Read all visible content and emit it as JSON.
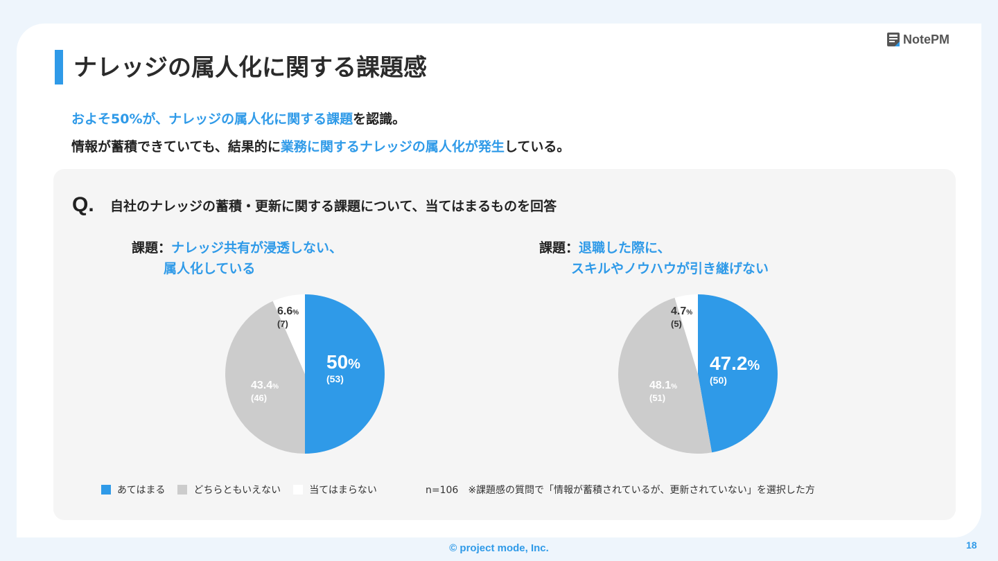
{
  "header": {
    "title": "ナレッジの属人化に関する課題感",
    "logo_text": "NotePM"
  },
  "lead": {
    "line1": [
      {
        "text": "およそ50%が、",
        "hl": true
      },
      {
        "text": "ナレッジの属人化に関する課題",
        "hl": true
      },
      {
        "text": "を認識。",
        "hl": false
      }
    ],
    "line2": [
      {
        "text": "情報が蓄積できていても、結果的に",
        "hl": false
      },
      {
        "text": "業務に関するナレッジの属人化が発生",
        "hl": true
      },
      {
        "text": "している。",
        "hl": false
      }
    ]
  },
  "question": {
    "mark": "Q.",
    "text": "自社のナレッジの蓄積・更新に関する課題について、当てはまるものを回答"
  },
  "chart_data": [
    {
      "type": "pie",
      "title_prefix": "課題：",
      "title_lines": [
        "ナレッジ共有が浸透しない、",
        "属人化している"
      ],
      "categories": [
        "あてはまる",
        "どちらともいえない",
        "当てはまらない"
      ],
      "values": [
        50,
        43.4,
        6.6
      ],
      "counts": [
        53,
        46,
        7
      ],
      "value_labels": [
        "50",
        "43.4",
        "6.6"
      ],
      "count_labels": [
        "(53)",
        "(46)",
        "(7)"
      ]
    },
    {
      "type": "pie",
      "title_prefix": "課題：",
      "title_lines": [
        "退職した際に、",
        "スキルやノウハウが引き継げない"
      ],
      "categories": [
        "あてはまる",
        "どちらともいえない",
        "当てはまらない"
      ],
      "values": [
        47.2,
        48.1,
        4.7
      ],
      "counts": [
        50,
        51,
        5
      ],
      "value_labels": [
        "47.2",
        "48.1",
        "4.7"
      ],
      "count_labels": [
        "(50)",
        "(51)",
        "(5)"
      ]
    }
  ],
  "percent_sign": "%",
  "legend": [
    {
      "label": "あてはまる",
      "color": "#2f9ae8"
    },
    {
      "label": "どちらともいえない",
      "color": "#cccccc"
    },
    {
      "label": "当てはまらない",
      "color": "#ffffff"
    }
  ],
  "note": "n=106　※課題感の質問で「情報が蓄積されているが、更新されていない」を選択した方",
  "footer": {
    "copyright": "© project mode, Inc.",
    "page": "18"
  }
}
